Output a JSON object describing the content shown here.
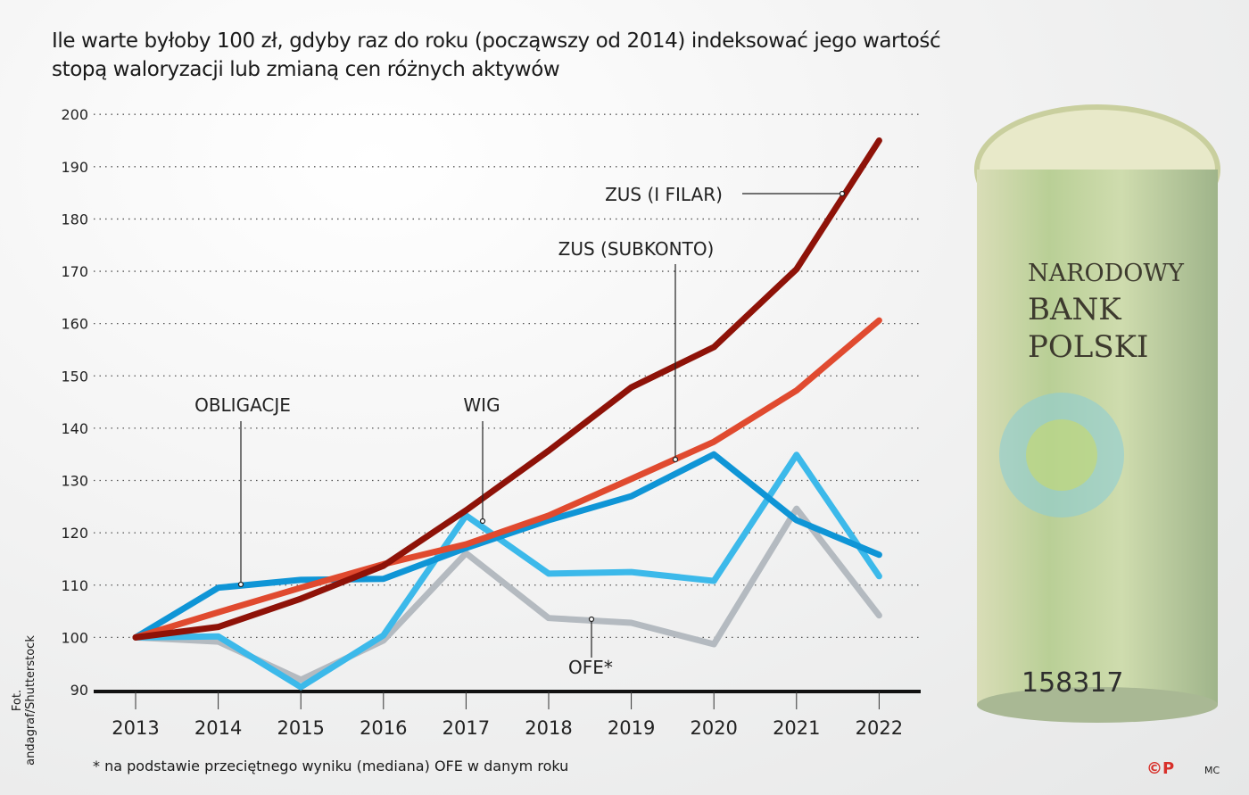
{
  "title": "Ile warte byłoby 100 zł, gdyby raz do roku (począwszy od 2014) indeksować jego wartość stopą waloryzacji lub zmianą cen różnych aktywów",
  "footnote": "* na podstawie przeciętnego wyniku (mediana) OFE w danym roku",
  "photo_credit": "Fot. andagraf/Shutterstock",
  "logo": "©P",
  "author": "MC",
  "banknote_text": [
    "NARODOWY",
    "BANK",
    "POLSKI",
    "158317"
  ],
  "chart_data": {
    "type": "line",
    "title": "Ile warte byłoby 100 zł, gdyby raz do roku (począwszy od 2014) indeksować jego wartość stopą waloryzacji lub zmianą cen różnych aktywów",
    "xlabel": "",
    "ylabel": "",
    "x": [
      "2013",
      "2014",
      "2015",
      "2016",
      "2017",
      "2018",
      "2019",
      "2020",
      "2021",
      "2022"
    ],
    "ylim": [
      90,
      200
    ],
    "yticks": [
      90,
      100,
      110,
      120,
      130,
      140,
      150,
      160,
      170,
      180,
      190,
      200
    ],
    "grid": true,
    "series": [
      {
        "name": "OFE*",
        "color": "#b4bac0",
        "values": [
          100,
          99.2,
          91.9,
          99.4,
          116.1,
          103.7,
          102.8,
          98.7,
          124.6,
          104.2
        ]
      },
      {
        "name": "WIG",
        "color": "#3cb9ea",
        "values": [
          100,
          100.2,
          90.5,
          100.4,
          123.3,
          112.2,
          112.5,
          110.8,
          134.9,
          111.7
        ]
      },
      {
        "name": "OBLIGACJE",
        "color": "#0f95d6",
        "values": [
          100,
          109.5,
          111,
          111.2,
          117.1,
          122.4,
          127,
          135,
          122.4,
          115.8
        ]
      },
      {
        "name": "ZUS (SUBKONTO)",
        "color": "#e04a2f",
        "values": [
          100,
          104.8,
          109.5,
          114,
          117.8,
          123.3,
          130.3,
          137.4,
          147.2,
          160.6
        ]
      },
      {
        "name": "ZUS (I FILAR)",
        "color": "#8e1208",
        "values": [
          100,
          102,
          107.4,
          113.7,
          124.3,
          135.7,
          147.8,
          155.5,
          170.4,
          195
        ]
      }
    ]
  }
}
